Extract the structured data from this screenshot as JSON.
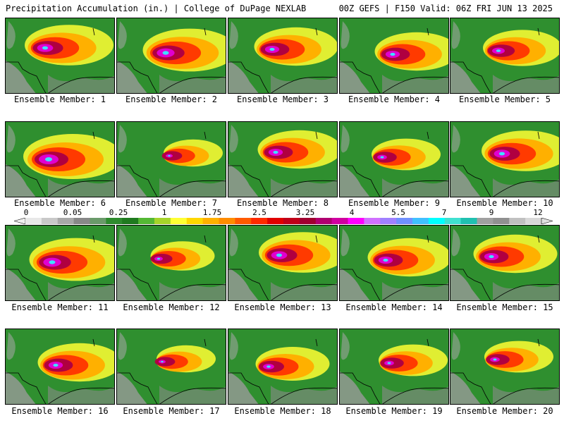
{
  "header": {
    "title": "Precipitation Accumulation (in.) | College of DuPage NEXLAB",
    "run_info": "00Z GEFS | F150 Valid: 06Z FRI JUN 13 2025"
  },
  "members": [
    {
      "label": "Ensemble Member: 1",
      "intensity": 0.9
    },
    {
      "label": "Ensemble Member: 2",
      "intensity": 0.95
    },
    {
      "label": "Ensemble Member: 3",
      "intensity": 0.85
    },
    {
      "label": "Ensemble Member: 4",
      "intensity": 0.85
    },
    {
      "label": "Ensemble Member: 5",
      "intensity": 0.8
    },
    {
      "label": "Ensemble Member: 6",
      "intensity": 1.0
    },
    {
      "label": "Ensemble Member: 7",
      "intensity": 0.6
    },
    {
      "label": "Ensemble Member: 8",
      "intensity": 0.85
    },
    {
      "label": "Ensemble Member: 9",
      "intensity": 0.7
    },
    {
      "label": "Ensemble Member: 10",
      "intensity": 0.9
    },
    {
      "label": "Ensemble Member: 11",
      "intensity": 0.95
    },
    {
      "label": "Ensemble Member: 12",
      "intensity": 0.65
    },
    {
      "label": "Ensemble Member: 13",
      "intensity": 0.9
    },
    {
      "label": "Ensemble Member: 14",
      "intensity": 0.85
    },
    {
      "label": "Ensemble Member: 15",
      "intensity": 0.85
    },
    {
      "label": "Ensemble Member: 16",
      "intensity": 0.85
    },
    {
      "label": "Ensemble Member: 17",
      "intensity": 0.6
    },
    {
      "label": "Ensemble Member: 18",
      "intensity": 0.75
    },
    {
      "label": "Ensemble Member: 19",
      "intensity": 0.7
    },
    {
      "label": "Ensemble Member: 20",
      "intensity": 0.7
    }
  ],
  "colorbar": {
    "labels": [
      "0",
      "0.05",
      "0.25",
      "1",
      "1.75",
      "2.5",
      "3.25",
      "4",
      "5.5",
      "7",
      "9",
      "12"
    ],
    "colors": [
      "#e8e8e8",
      "#c8c8c8",
      "#a8a8a8",
      "#888888",
      "#6a9a6a",
      "#2e8b2e",
      "#1f7a1f",
      "#54b834",
      "#a6d42a",
      "#ffff33",
      "#ffd700",
      "#ffb000",
      "#ff8c00",
      "#ff5a00",
      "#ff2a00",
      "#e00000",
      "#c00018",
      "#a00030",
      "#b00070",
      "#d000a0",
      "#ff00ff",
      "#d070ff",
      "#a080ff",
      "#7090ff",
      "#40c0ff",
      "#00ffff",
      "#40e0d0",
      "#20c0b0",
      "#a0a0a0",
      "#909090",
      "#c0c0c0",
      "#d8d8d8"
    ]
  }
}
